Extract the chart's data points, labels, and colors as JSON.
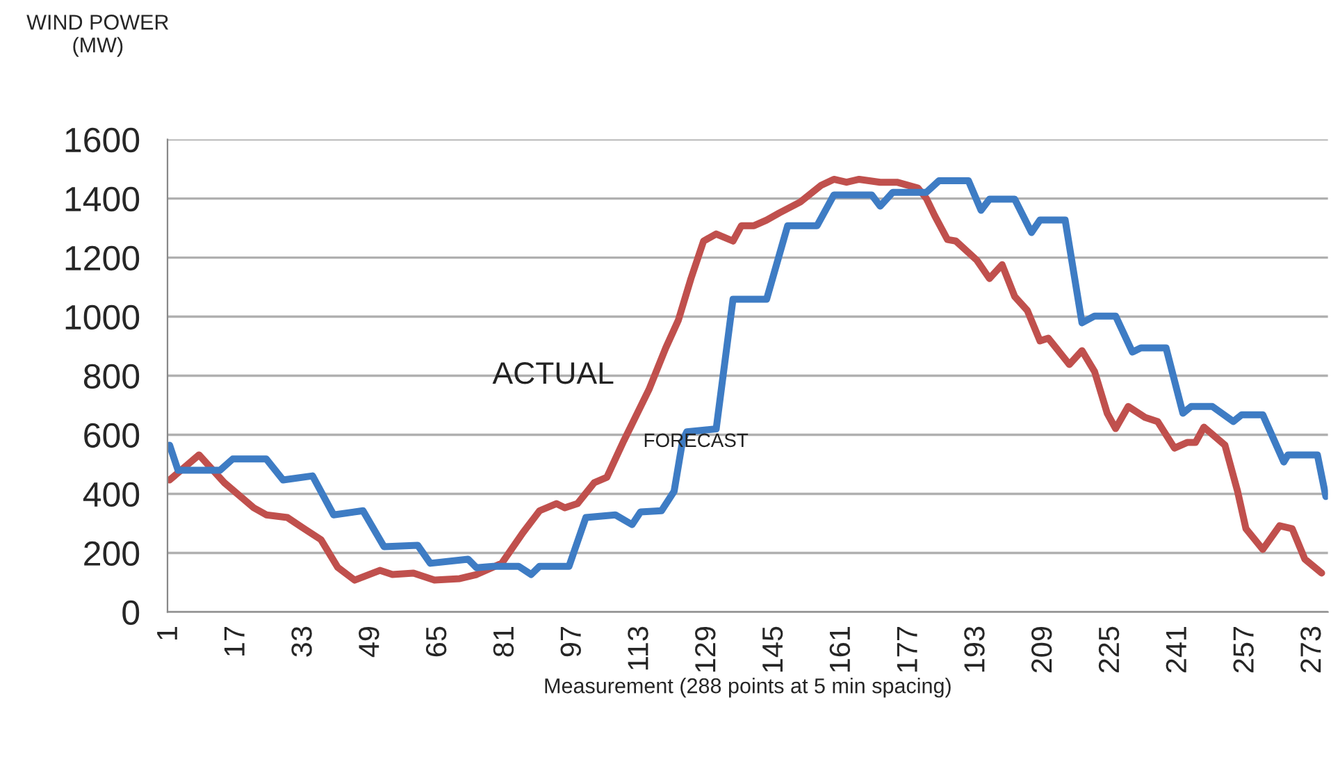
{
  "chart_data": {
    "type": "line",
    "ylabel": "WIND POWER\n(MW)",
    "xlabel": "Measurement (288 points at 5 min spacing)",
    "xlim": [
      0.5,
      276.5
    ],
    "xticks": [
      1,
      17,
      33,
      49,
      65,
      81,
      97,
      113,
      129,
      145,
      161,
      177,
      193,
      209,
      225,
      241,
      257,
      273
    ],
    "ylim": [
      0,
      1600
    ],
    "yticks": [
      0,
      200,
      400,
      600,
      800,
      1000,
      1200,
      1400,
      1600
    ],
    "grid": "y",
    "legend": false,
    "marker": "none",
    "line_style": "solid",
    "series": [
      {
        "name": "ACTUAL",
        "color": "#c0504d",
        "x": [
          1,
          8,
          14,
          21,
          24,
          29,
          33,
          37,
          41,
          45,
          51,
          54,
          59,
          64,
          70,
          74,
          80,
          85,
          89,
          93,
          95,
          98,
          102,
          105,
          109,
          115,
          119,
          122,
          125,
          128,
          131,
          135,
          137,
          140,
          143,
          146,
          151,
          156,
          159,
          162,
          165,
          170,
          174,
          179,
          181,
          183,
          186,
          188,
          193,
          196,
          199,
          202,
          205,
          208,
          210,
          215,
          218,
          221,
          224,
          226,
          229,
          233,
          236,
          240,
          243,
          245,
          247,
          252,
          255,
          257,
          261,
          265,
          268,
          271,
          275
        ],
        "values": [
          447,
          532,
          438,
          353,
          329,
          320,
          282,
          245,
          151,
          108,
          141,
          127,
          132,
          108,
          113,
          127,
          165,
          268,
          343,
          367,
          353,
          367,
          438,
          456,
          579,
          753,
          894,
          988,
          1129,
          1256,
          1280,
          1256,
          1308,
          1308,
          1327,
          1351,
          1388,
          1445,
          1465,
          1455,
          1465,
          1455,
          1455,
          1435,
          1400,
          1341,
          1261,
          1256,
          1191,
          1129,
          1176,
          1068,
          1021,
          918,
          927,
          838,
          885,
          814,
          673,
          621,
          696,
          659,
          645,
          555,
          574,
          574,
          626,
          565,
          409,
          282,
          212,
          292,
          282,
          179,
          132
        ]
      },
      {
        "name": "FORECAST",
        "color": "#3e7cc4",
        "x": [
          1,
          3,
          13,
          16,
          24,
          28,
          35,
          40,
          47,
          52,
          60,
          63,
          72,
          74,
          78,
          84,
          87,
          89,
          96,
          100,
          107,
          111,
          113,
          118,
          121,
          123,
          124,
          131,
          135,
          143,
          148,
          155,
          159,
          168,
          170,
          173,
          181,
          184,
          191,
          194,
          196,
          202,
          206,
          208,
          214,
          218,
          221,
          226,
          230,
          232,
          238,
          242,
          244,
          249,
          254,
          256,
          261,
          266,
          267,
          274,
          276
        ],
        "values": [
          565,
          480,
          480,
          518,
          518,
          447,
          461,
          329,
          343,
          221,
          226,
          165,
          179,
          150,
          155,
          155,
          127,
          155,
          155,
          320,
          329,
          296,
          339,
          343,
          409,
          579,
          610,
          620,
          1059,
          1059,
          1308,
          1308,
          1412,
          1412,
          1374,
          1421,
          1421,
          1460,
          1460,
          1360,
          1398,
          1398,
          1285,
          1327,
          1327,
          979,
          1002,
          1002,
          880,
          894,
          894,
          673,
          696,
          696,
          645,
          668,
          668,
          508,
          532,
          532,
          391
        ]
      }
    ]
  }
}
